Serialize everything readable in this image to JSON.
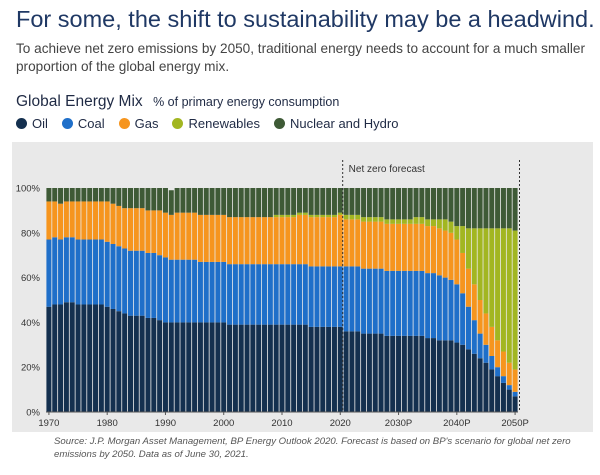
{
  "headline": "For some, the shift to sustainability may be a headwind.",
  "subhead": "To achieve net zero emissions by 2050, traditional energy needs to account for a much smaller proportion of the global energy mix.",
  "chart_title": "Global Energy Mix",
  "chart_subtitle": "% of primary energy consumption",
  "source": "Source: J.P. Morgan Asset Management, BP Energy Outlook 2020. Forecast is based on BP's scenario for global net zero emissions by 2050. Data as of June 30, 2021.",
  "legend": [
    {
      "name": "Oil",
      "color": "#14304f"
    },
    {
      "name": "Coal",
      "color": "#1f6fc9"
    },
    {
      "name": "Gas",
      "color": "#f6951e"
    },
    {
      "name": "Renewables",
      "color": "#a2b621"
    },
    {
      "name": "Nuclear and Hydro",
      "color": "#3e5a36"
    }
  ],
  "chart_data": {
    "type": "bar",
    "stacked": true,
    "annotation": "Net zero forecast",
    "x_tick_labels": [
      "1970",
      "1980",
      "1990",
      "2000",
      "2010",
      "2020",
      "2030P",
      "2040P",
      "2050P"
    ],
    "y_tick_labels": [
      "0%",
      "20%",
      "40%",
      "60%",
      "80%",
      "100%"
    ],
    "ylim": [
      0,
      100
    ],
    "categories": [
      "1970",
      "1971",
      "1972",
      "1973",
      "1974",
      "1975",
      "1976",
      "1977",
      "1978",
      "1979",
      "1980",
      "1981",
      "1982",
      "1983",
      "1984",
      "1985",
      "1986",
      "1987",
      "1988",
      "1989",
      "1990",
      "1991",
      "1992",
      "1993",
      "1994",
      "1995",
      "1996",
      "1997",
      "1998",
      "1999",
      "2000",
      "2001",
      "2002",
      "2003",
      "2004",
      "2005",
      "2006",
      "2007",
      "2008",
      "2009",
      "2010",
      "2011",
      "2012",
      "2013",
      "2014",
      "2015",
      "2016",
      "2017",
      "2018",
      "2019",
      "2020",
      "2021P",
      "2022P",
      "2023P",
      "2024P",
      "2025P",
      "2026P",
      "2027P",
      "2028P",
      "2029P",
      "2030P",
      "2031P",
      "2032P",
      "2033P",
      "2034P",
      "2035P",
      "2036P",
      "2037P",
      "2038P",
      "2039P",
      "2040P",
      "2041P",
      "2042P",
      "2043P",
      "2044P",
      "2045P",
      "2046P",
      "2047P",
      "2048P",
      "2049P",
      "2050P"
    ],
    "series": [
      {
        "name": "Oil",
        "color": "#14304f",
        "values": [
          47,
          48,
          48,
          49,
          49,
          48,
          48,
          48,
          48,
          48,
          47,
          46,
          45,
          44,
          43,
          43,
          43,
          42,
          42,
          41,
          40,
          40,
          40,
          40,
          40,
          40,
          40,
          40,
          40,
          40,
          40,
          39,
          39,
          39,
          39,
          39,
          39,
          39,
          39,
          39,
          39,
          39,
          39,
          39,
          39,
          38,
          38,
          38,
          38,
          38,
          38,
          36,
          36,
          36,
          35,
          35,
          35,
          35,
          34,
          34,
          34,
          34,
          34,
          34,
          34,
          33,
          33,
          32,
          32,
          32,
          31,
          30,
          28,
          26,
          24,
          22,
          19,
          16,
          13,
          10,
          7
        ]
      },
      {
        "name": "Coal",
        "color": "#1f6fc9",
        "values": [
          30,
          30,
          29,
          29,
          29,
          29,
          29,
          29,
          29,
          29,
          29,
          29,
          29,
          29,
          29,
          29,
          29,
          29,
          29,
          29,
          29,
          28,
          28,
          28,
          28,
          28,
          27,
          27,
          27,
          27,
          27,
          27,
          27,
          27,
          27,
          27,
          27,
          27,
          27,
          27,
          27,
          27,
          27,
          27,
          27,
          27,
          27,
          27,
          27,
          27,
          27,
          29,
          29,
          29,
          29,
          29,
          29,
          29,
          29,
          29,
          29,
          29,
          29,
          29,
          29,
          29,
          29,
          29,
          28,
          27,
          26,
          23,
          19,
          15,
          11,
          8,
          6,
          4,
          3,
          2,
          2
        ]
      },
      {
        "name": "Gas",
        "color": "#f6951e",
        "values": [
          17,
          16,
          16,
          16,
          16,
          17,
          17,
          17,
          17,
          17,
          18,
          18,
          18,
          18,
          19,
          19,
          19,
          19,
          19,
          20,
          20,
          20,
          21,
          21,
          21,
          21,
          21,
          21,
          21,
          21,
          21,
          21,
          21,
          21,
          21,
          21,
          21,
          21,
          21,
          21,
          21,
          21,
          21,
          22,
          22,
          22,
          22,
          22,
          22,
          22,
          23,
          21,
          21,
          21,
          21,
          21,
          21,
          21,
          21,
          21,
          21,
          21,
          21,
          21,
          21,
          21,
          21,
          21,
          21,
          21,
          20,
          18,
          17,
          16,
          15,
          14,
          13,
          12,
          11,
          10,
          10
        ]
      },
      {
        "name": "Renewables",
        "color": "#a2b621",
        "values": [
          0,
          0,
          0,
          0,
          0,
          0,
          0,
          0,
          0,
          0,
          0,
          0,
          0,
          0,
          0,
          0,
          0,
          0,
          0,
          0,
          0,
          0,
          0,
          0,
          0,
          0,
          0,
          0,
          0,
          0,
          0,
          0,
          0,
          0,
          0,
          0,
          0,
          0,
          0,
          1,
          1,
          1,
          1,
          1,
          1,
          1,
          1,
          1,
          1,
          1,
          1,
          2,
          2,
          2,
          2,
          2,
          2,
          2,
          2,
          2,
          2,
          2,
          2,
          3,
          3,
          3,
          3,
          4,
          5,
          5,
          6,
          12,
          18,
          25,
          32,
          38,
          44,
          50,
          55,
          60,
          62
        ]
      },
      {
        "name": "Nuclear and Hydro",
        "color": "#3e5a36",
        "values": [
          6,
          6,
          7,
          6,
          6,
          6,
          6,
          6,
          6,
          6,
          6,
          7,
          8,
          9,
          9,
          9,
          9,
          10,
          10,
          10,
          11,
          11,
          11,
          11,
          11,
          11,
          12,
          12,
          12,
          12,
          12,
          13,
          13,
          13,
          13,
          13,
          13,
          13,
          13,
          12,
          12,
          12,
          12,
          11,
          11,
          12,
          12,
          12,
          12,
          12,
          11,
          12,
          12,
          12,
          13,
          13,
          13,
          13,
          14,
          14,
          14,
          14,
          14,
          13,
          13,
          14,
          14,
          14,
          14,
          15,
          17,
          17,
          18,
          18,
          18,
          18,
          18,
          18,
          18,
          18,
          19
        ]
      }
    ]
  }
}
